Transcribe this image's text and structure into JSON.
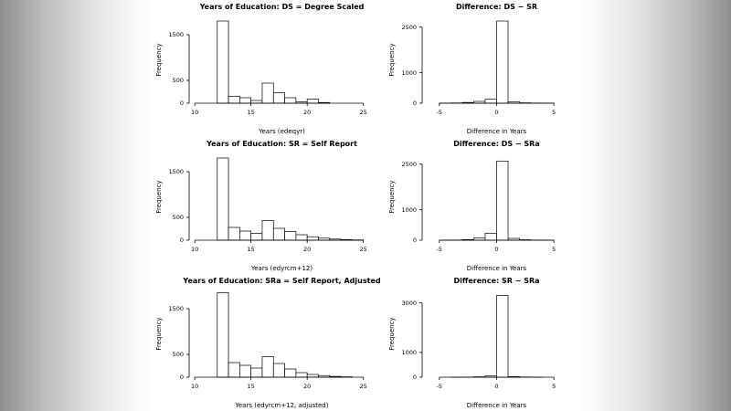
{
  "page": {
    "background_edge_color": "#8f8f8f",
    "panel_background": "#ffffff",
    "plot_line_color": "#000000",
    "bar_fill": "#ffffff"
  },
  "chart_data": [
    {
      "type": "bar",
      "kind": "histogram",
      "title": "Years of Education: DS = Degree Scaled",
      "xlabel": "Years (edeqyr)",
      "ylabel": "Frequency",
      "bin_start": 11,
      "bin_width": 1,
      "counts": [
        0,
        1800,
        150,
        120,
        60,
        440,
        230,
        120,
        30,
        90,
        15,
        0,
        0,
        0
      ],
      "xlim": [
        9.5,
        26
      ],
      "ylim": [
        0,
        1900
      ],
      "xticks": [
        10,
        15,
        20,
        25
      ],
      "yticks": [
        0,
        500,
        1500
      ],
      "grid": false,
      "legend": null
    },
    {
      "type": "bar",
      "kind": "histogram",
      "title": "Difference: DS − SR",
      "xlabel": "Difference in Years",
      "ylabel": "Frequency",
      "bin_start": -5,
      "bin_width": 1,
      "counts": [
        3,
        8,
        25,
        60,
        130,
        2700,
        45,
        12,
        5,
        2
      ],
      "xlim": [
        -6.5,
        6.5
      ],
      "ylim": [
        0,
        2850
      ],
      "xticks": [
        -5,
        0,
        5
      ],
      "yticks": [
        0,
        1000,
        2500
      ],
      "grid": false,
      "legend": null
    },
    {
      "type": "bar",
      "kind": "histogram",
      "title": "Years of Education: SR = Self Report",
      "xlabel": "Years (edyrcm+12)",
      "ylabel": "Frequency",
      "bin_start": 11,
      "bin_width": 1,
      "counts": [
        0,
        1800,
        280,
        200,
        150,
        430,
        260,
        190,
        120,
        75,
        45,
        25,
        12,
        6
      ],
      "xlim": [
        9.5,
        26
      ],
      "ylim": [
        0,
        1900
      ],
      "xticks": [
        10,
        15,
        20,
        25
      ],
      "yticks": [
        0,
        500,
        1500
      ],
      "grid": false,
      "legend": null
    },
    {
      "type": "bar",
      "kind": "histogram",
      "title": "Difference: DS − SRa",
      "xlabel": "Difference in Years",
      "ylabel": "Frequency",
      "bin_start": -5,
      "bin_width": 1,
      "counts": [
        2,
        5,
        20,
        80,
        230,
        2600,
        60,
        15,
        5,
        2
      ],
      "xlim": [
        -6.5,
        6.5
      ],
      "ylim": [
        0,
        2850
      ],
      "xticks": [
        -5,
        0,
        5
      ],
      "yticks": [
        0,
        1000,
        2500
      ],
      "grid": false,
      "legend": null
    },
    {
      "type": "bar",
      "kind": "histogram",
      "title": "Years of Education: SRa = Self Report, Adjusted",
      "xlabel": "Years (edyrcm+12, adjusted)",
      "ylabel": "Frequency",
      "bin_start": 11,
      "bin_width": 1,
      "counts": [
        0,
        1850,
        320,
        260,
        200,
        450,
        300,
        180,
        100,
        60,
        35,
        18,
        8,
        0
      ],
      "xlim": [
        9.5,
        26
      ],
      "ylim": [
        0,
        1900
      ],
      "xticks": [
        10,
        15,
        20,
        25
      ],
      "yticks": [
        0,
        500,
        1500
      ],
      "grid": false,
      "legend": null
    },
    {
      "type": "bar",
      "kind": "histogram",
      "title": "Difference: SR − SRa",
      "xlabel": "Difference in Years",
      "ylabel": "Frequency",
      "bin_start": -5,
      "bin_width": 1,
      "counts": [
        0,
        2,
        5,
        15,
        60,
        3300,
        25,
        8,
        2,
        0
      ],
      "xlim": [
        -6.5,
        6.5
      ],
      "ylim": [
        0,
        3500
      ],
      "xticks": [
        -5,
        0,
        5
      ],
      "yticks": [
        0,
        1000,
        3000
      ],
      "grid": false,
      "legend": null
    }
  ]
}
